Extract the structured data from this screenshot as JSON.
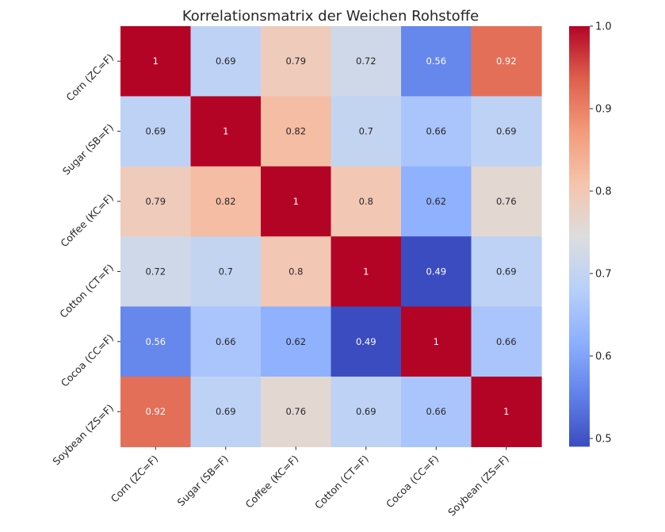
{
  "chart_data": {
    "type": "heatmap",
    "title": "Korrelationsmatrix der Weichen Rohstoffe",
    "labels": [
      "Corn (ZC=F)",
      "Sugar (SB=F)",
      "Coffee (KC=F)",
      "Cotton (CT=F)",
      "Cocoa (CC=F)",
      "Soybean (ZS=F)"
    ],
    "values": [
      [
        1,
        0.69,
        0.79,
        0.72,
        0.56,
        0.92
      ],
      [
        0.69,
        1,
        0.82,
        0.7,
        0.66,
        0.69
      ],
      [
        0.79,
        0.82,
        1,
        0.8,
        0.62,
        0.76
      ],
      [
        0.72,
        0.7,
        0.8,
        1,
        0.49,
        0.69
      ],
      [
        0.56,
        0.66,
        0.62,
        0.49,
        1,
        0.66
      ],
      [
        0.92,
        0.69,
        0.76,
        0.69,
        0.66,
        1
      ]
    ],
    "value_labels": [
      [
        "1",
        "0.69",
        "0.79",
        "0.72",
        "0.56",
        "0.92"
      ],
      [
        "0.69",
        "1",
        "0.82",
        "0.7",
        "0.66",
        "0.69"
      ],
      [
        "0.79",
        "0.82",
        "1",
        "0.8",
        "0.62",
        "0.76"
      ],
      [
        "0.72",
        "0.7",
        "0.8",
        "1",
        "0.49",
        "0.69"
      ],
      [
        "0.56",
        "0.66",
        "0.62",
        "0.49",
        "1",
        "0.66"
      ],
      [
        "0.92",
        "0.69",
        "0.76",
        "0.69",
        "0.66",
        "1"
      ]
    ],
    "colormap": "coolwarm",
    "vmin": 0.49,
    "vmax": 1.0,
    "colorbar_ticks": [
      0.5,
      0.6,
      0.7,
      0.8,
      0.9,
      1.0
    ],
    "colorbar_tick_labels": [
      "0.5",
      "0.6",
      "0.7",
      "0.8",
      "0.9",
      "1.0"
    ],
    "colorbar_position": "right",
    "grid": false
  }
}
